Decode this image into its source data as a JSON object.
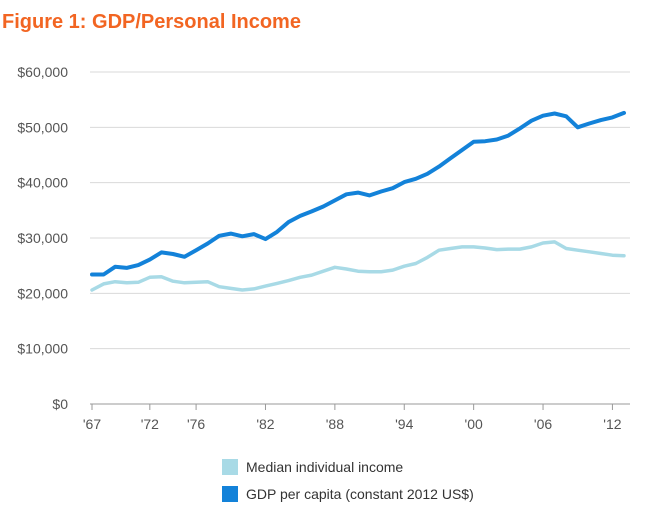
{
  "figure": {
    "title": "Figure 1: GDP/Personal Income",
    "title_color": "#F26522"
  },
  "chart_data": {
    "type": "line",
    "title": "Figure 1: GDP/Personal Income",
    "xlabel": "",
    "ylabel": "",
    "x": [
      1967,
      1968,
      1969,
      1970,
      1971,
      1972,
      1973,
      1974,
      1975,
      1976,
      1977,
      1978,
      1979,
      1980,
      1981,
      1982,
      1983,
      1984,
      1985,
      1986,
      1987,
      1988,
      1989,
      1990,
      1991,
      1992,
      1993,
      1994,
      1995,
      1996,
      1997,
      1998,
      1999,
      2000,
      2001,
      2002,
      2003,
      2004,
      2005,
      2006,
      2007,
      2008,
      2009,
      2010,
      2011,
      2012,
      2013
    ],
    "xlim": [
      1967,
      2013
    ],
    "ylim": [
      0,
      60000
    ],
    "x_ticks": [
      1967,
      1972,
      1976,
      1982,
      1988,
      1994,
      2000,
      2006,
      2012
    ],
    "x_tick_labels": [
      "'67",
      "'72",
      "'76",
      "'82",
      "'88",
      "'94",
      "'00",
      "'06",
      "'12"
    ],
    "y_ticks": [
      0,
      10000,
      20000,
      30000,
      40000,
      50000,
      60000
    ],
    "y_tick_labels": [
      "$0",
      "$10,000",
      "$20,000",
      "$30,000",
      "$40,000",
      "$50,000",
      "$60,000"
    ],
    "grid": "horizontal",
    "legend_position": "bottom",
    "series": [
      {
        "name": "Median individual income",
        "color": "#A8DAE6",
        "values": [
          20600,
          21700,
          22100,
          21900,
          22000,
          22900,
          23000,
          22200,
          21900,
          22000,
          22100,
          21200,
          20900,
          20600,
          20800,
          21300,
          21800,
          22300,
          22900,
          23300,
          24000,
          24700,
          24400,
          24000,
          23900,
          23900,
          24200,
          24900,
          25400,
          26500,
          27800,
          28100,
          28400,
          28400,
          28200,
          27900,
          28000,
          28000,
          28400,
          29100,
          29300,
          28100,
          27800,
          27500,
          27200,
          26900,
          26800
        ]
      },
      {
        "name": "GDP per capita (constant 2012 US$)",
        "color": "#1382D9",
        "values": [
          23400,
          23400,
          24800,
          24600,
          25100,
          26100,
          27400,
          27100,
          26600,
          27800,
          29000,
          30400,
          30800,
          30300,
          30700,
          29800,
          31100,
          32900,
          34000,
          34800,
          35700,
          36800,
          37900,
          38200,
          37700,
          38400,
          39000,
          40100,
          40700,
          41600,
          42900,
          44400,
          45900,
          47400,
          47500,
          47800,
          48500,
          49800,
          51200,
          52100,
          52500,
          52000,
          50000,
          50700,
          51300,
          51800,
          52600
        ]
      }
    ]
  },
  "legend": {
    "items": [
      {
        "label": "Median individual income",
        "color": "#A8DAE6"
      },
      {
        "label": "GDP per capita (constant 2012 US$)",
        "color": "#1382D9"
      }
    ]
  },
  "style": {
    "grid_color": "#D9D9D9",
    "axis_color": "#999999"
  }
}
